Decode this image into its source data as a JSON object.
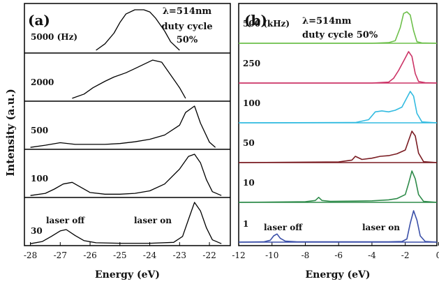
{
  "ylabel": "Intensity (a.u.)",
  "chart_data": [
    {
      "type": "line",
      "panel_label": "(a)",
      "annotation": [
        "λ=514nm",
        "duty cycle",
        "50%"
      ],
      "xlabel": "Energy (eV)",
      "ylabel": "Intensity (a.u.)",
      "xlim": [
        -28.2,
        -21.3
      ],
      "xticks": [
        -28,
        -27,
        -26,
        -25,
        -24,
        -23,
        -22
      ],
      "legend_placement": "none",
      "grid": false,
      "peak_labels": {
        "left": "laser off",
        "right": "laser on"
      },
      "series": [
        {
          "name": "5000 (Hz)",
          "color": "#000000",
          "x": [
            -25.8,
            -25.5,
            -25.2,
            -25.0,
            -24.8,
            -24.5,
            -24.2,
            -24.0,
            -23.8,
            -23.5,
            -23.3,
            -23.0
          ],
          "y": [
            0.05,
            0.2,
            0.45,
            0.7,
            0.9,
            1.0,
            1.0,
            0.95,
            0.8,
            0.5,
            0.25,
            0.05
          ]
        },
        {
          "name": "2000",
          "color": "#000000",
          "x": [
            -26.6,
            -26.2,
            -25.9,
            -25.5,
            -25.2,
            -24.8,
            -24.5,
            -24.2,
            -23.9,
            -23.6,
            -23.3,
            -23.0,
            -22.8
          ],
          "y": [
            0.05,
            0.15,
            0.3,
            0.45,
            0.55,
            0.65,
            0.75,
            0.85,
            0.95,
            0.9,
            0.6,
            0.3,
            0.05
          ]
        },
        {
          "name": "500",
          "color": "#000000",
          "x": [
            -28.0,
            -27.5,
            -27.0,
            -26.5,
            -26.0,
            -25.5,
            -25.0,
            -24.5,
            -24.0,
            -23.5,
            -23.0,
            -22.8,
            -22.5,
            -22.3,
            -22.0,
            -21.8
          ],
          "y": [
            0.03,
            0.08,
            0.14,
            0.1,
            0.1,
            0.1,
            0.12,
            0.16,
            0.22,
            0.32,
            0.55,
            0.85,
            1.0,
            0.6,
            0.15,
            0.03
          ]
        },
        {
          "name": "100",
          "color": "#000000",
          "x": [
            -28.0,
            -27.5,
            -27.2,
            -26.9,
            -26.6,
            -26.3,
            -26.0,
            -25.5,
            -25.0,
            -24.5,
            -24.0,
            -23.5,
            -23.0,
            -22.7,
            -22.5,
            -22.3,
            -22.1,
            -21.9,
            -21.6
          ],
          "y": [
            0.03,
            0.08,
            0.18,
            0.3,
            0.34,
            0.22,
            0.1,
            0.06,
            0.06,
            0.08,
            0.14,
            0.3,
            0.65,
            0.95,
            1.0,
            0.8,
            0.4,
            0.12,
            0.03
          ]
        },
        {
          "name": "30",
          "color": "#000000",
          "x": [
            -28.0,
            -27.6,
            -27.3,
            -27.0,
            -26.8,
            -26.5,
            -26.2,
            -25.8,
            -25.0,
            -24.0,
            -23.2,
            -22.9,
            -22.7,
            -22.5,
            -22.3,
            -22.1,
            -21.9,
            -21.6
          ],
          "y": [
            0.03,
            0.08,
            0.2,
            0.33,
            0.36,
            0.22,
            0.1,
            0.05,
            0.04,
            0.04,
            0.06,
            0.2,
            0.6,
            1.0,
            0.8,
            0.4,
            0.12,
            0.03
          ]
        }
      ]
    },
    {
      "type": "line",
      "panel_label": "(b)",
      "annotation": [
        "λ=514nm",
        "duty cycle 50%"
      ],
      "xlabel": "Energy (eV)",
      "ylabel": "",
      "xlim": [
        -12.0,
        -0.1
      ],
      "xticks": [
        -12,
        -10,
        -8,
        -6,
        -4,
        -2,
        0
      ],
      "legend_placement": "none",
      "grid": false,
      "peak_labels": {
        "left": "laser off",
        "right": "laser on"
      },
      "series": [
        {
          "name": "500 (kHz)",
          "color": "#6dbf4a",
          "x": [
            -12.0,
            -4.0,
            -3.0,
            -2.6,
            -2.3,
            -2.1,
            -1.9,
            -1.7,
            -1.5,
            -1.3,
            -1.0,
            -0.1
          ],
          "y": [
            0.0,
            0.0,
            0.02,
            0.08,
            0.5,
            0.95,
            1.0,
            0.9,
            0.4,
            0.05,
            0.01,
            0.0
          ]
        },
        {
          "name": "250",
          "color": "#cc3366",
          "x": [
            -12.0,
            -4.0,
            -3.0,
            -2.7,
            -2.4,
            -2.2,
            -2.0,
            -1.8,
            -1.6,
            -1.4,
            -1.2,
            -0.8,
            -0.1
          ],
          "y": [
            0.0,
            0.0,
            0.03,
            0.15,
            0.4,
            0.6,
            0.8,
            1.0,
            0.85,
            0.3,
            0.05,
            0.01,
            0.0
          ]
        },
        {
          "name": "100",
          "color": "#33bbe0",
          "x": [
            -12.0,
            -5.0,
            -4.2,
            -3.8,
            -3.4,
            -3.0,
            -2.6,
            -2.2,
            -1.9,
            -1.7,
            -1.5,
            -1.3,
            -1.0,
            -0.1
          ],
          "y": [
            0.0,
            0.01,
            0.1,
            0.35,
            0.38,
            0.35,
            0.4,
            0.5,
            0.8,
            1.0,
            0.85,
            0.3,
            0.03,
            0.0
          ]
        },
        {
          "name": "50",
          "color": "#7a1c22",
          "x": [
            -12.0,
            -6.0,
            -5.2,
            -5.0,
            -4.6,
            -4.0,
            -3.5,
            -3.0,
            -2.5,
            -2.0,
            -1.8,
            -1.6,
            -1.4,
            -1.2,
            -0.9,
            -0.1
          ],
          "y": [
            0.0,
            0.02,
            0.08,
            0.2,
            0.1,
            0.14,
            0.2,
            0.22,
            0.28,
            0.4,
            0.7,
            1.0,
            0.85,
            0.3,
            0.03,
            0.0
          ]
        },
        {
          "name": "10",
          "color": "#2e8b4a",
          "x": [
            -12.0,
            -8.0,
            -7.4,
            -7.2,
            -7.0,
            -6.5,
            -5.0,
            -4.0,
            -3.0,
            -2.5,
            -2.0,
            -1.8,
            -1.6,
            -1.4,
            -1.2,
            -0.9,
            -0.1
          ],
          "y": [
            0.0,
            0.02,
            0.06,
            0.16,
            0.06,
            0.03,
            0.04,
            0.05,
            0.08,
            0.12,
            0.25,
            0.6,
            1.0,
            0.75,
            0.25,
            0.03,
            0.0
          ]
        },
        {
          "name": "1",
          "color": "#3a4fa8",
          "x": [
            -12.0,
            -10.5,
            -10.1,
            -9.9,
            -9.7,
            -9.5,
            -9.2,
            -8.5,
            -5.0,
            -3.0,
            -2.2,
            -1.9,
            -1.7,
            -1.5,
            -1.3,
            -1.1,
            -0.8,
            -0.1
          ],
          "y": [
            0.0,
            0.01,
            0.06,
            0.2,
            0.26,
            0.12,
            0.03,
            0.01,
            0.01,
            0.01,
            0.02,
            0.1,
            0.6,
            1.0,
            0.7,
            0.2,
            0.02,
            0.0
          ]
        }
      ]
    }
  ]
}
